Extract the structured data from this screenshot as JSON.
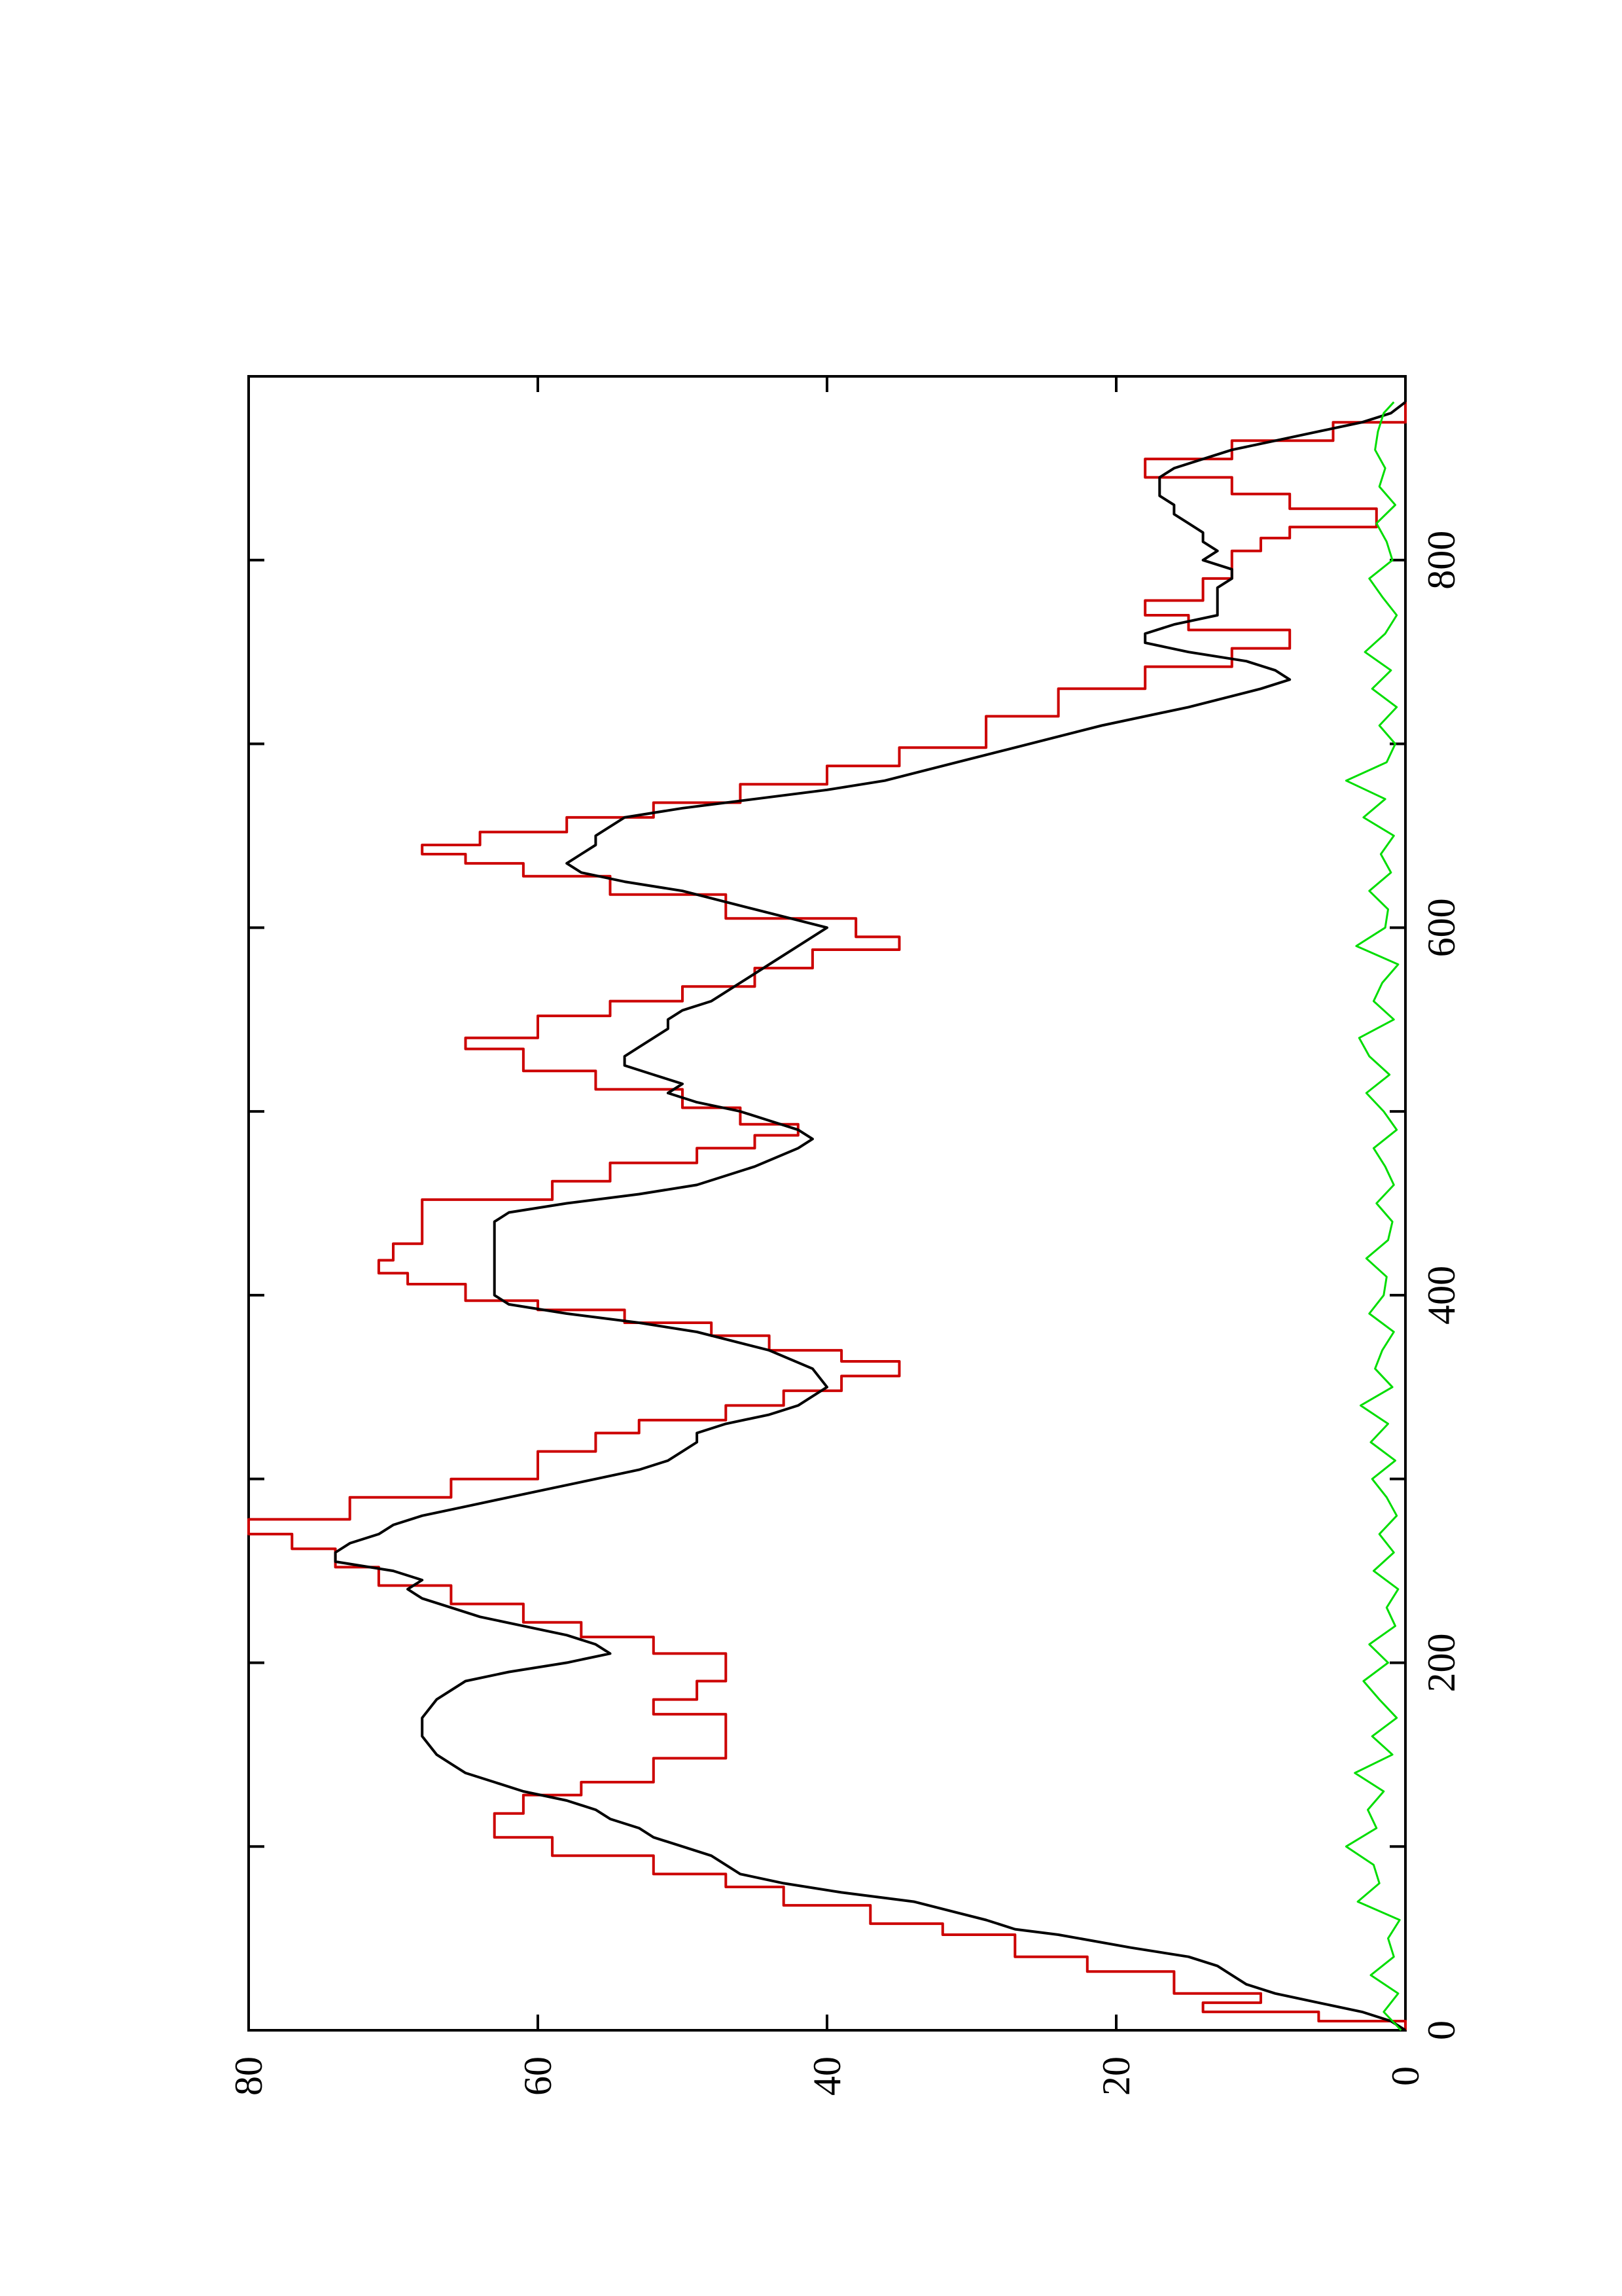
{
  "chart_data": {
    "type": "line",
    "orientation": "rotated-90-ccw",
    "xlim": [
      0,
      900
    ],
    "ylim": [
      0,
      80
    ],
    "x_ticks": [
      0,
      200,
      400,
      600,
      800
    ],
    "x_minor_ticks": [
      100,
      300,
      500,
      700
    ],
    "y_ticks": [
      0,
      20,
      40,
      60,
      80
    ],
    "grid": false,
    "legend": "none",
    "series": [
      {
        "color": "#cc0000",
        "style": "step",
        "x": [
          0,
          5,
          5,
          10,
          10,
          15,
          15,
          20,
          20,
          32,
          32,
          40,
          40,
          52,
          52,
          58,
          58,
          68,
          68,
          78,
          78,
          85,
          85,
          95,
          95,
          105,
          105,
          118,
          118,
          128,
          128,
          135,
          135,
          148,
          148,
          152,
          152,
          172,
          172,
          180,
          180,
          190,
          190,
          205,
          205,
          214,
          214,
          222,
          222,
          232,
          232,
          242,
          242,
          252,
          252,
          262,
          262,
          270,
          270,
          278,
          278,
          290,
          290,
          300,
          300,
          315,
          315,
          325,
          325,
          332,
          332,
          340,
          340,
          348,
          348,
          356,
          356,
          364,
          364,
          370,
          370,
          378,
          378,
          385,
          385,
          392,
          392,
          397,
          397,
          406,
          406,
          412,
          412,
          419,
          419,
          428,
          428,
          440,
          440,
          452,
          452,
          462,
          462,
          472,
          472,
          480,
          480,
          487,
          487,
          493,
          493,
          502,
          502,
          512,
          512,
          522,
          522,
          534,
          534,
          540,
          540,
          552,
          552,
          560,
          560,
          568,
          568,
          578,
          578,
          588,
          588,
          595,
          595,
          605,
          605,
          618,
          618,
          628,
          628,
          635,
          635,
          640,
          640,
          645,
          645,
          652,
          652,
          660,
          660,
          668,
          668,
          678,
          678,
          688,
          688,
          698,
          698,
          715,
          715,
          730,
          730,
          742,
          742,
          752,
          752,
          762,
          762,
          770,
          770,
          778,
          778,
          790,
          790,
          805,
          805,
          812,
          812,
          818,
          818,
          828,
          828,
          836,
          836,
          845,
          845,
          855,
          855,
          865,
          865,
          875,
          875,
          886
        ],
        "y": [
          0,
          0,
          6,
          6,
          14,
          14,
          10,
          10,
          16,
          16,
          22,
          22,
          27,
          27,
          32,
          32,
          37,
          37,
          43,
          43,
          47,
          47,
          52,
          52,
          59,
          59,
          63,
          63,
          61,
          61,
          57,
          57,
          52,
          52,
          47,
          47,
          47,
          47,
          52,
          52,
          49,
          49,
          47,
          47,
          52,
          52,
          57,
          57,
          61,
          61,
          66,
          66,
          71,
          71,
          74,
          74,
          77,
          77,
          80,
          80,
          73,
          73,
          66,
          66,
          60,
          60,
          56,
          56,
          53,
          53,
          47,
          47,
          43,
          43,
          39,
          39,
          35,
          35,
          39,
          39,
          44,
          44,
          48,
          48,
          54,
          54,
          60,
          60,
          65,
          65,
          69,
          69,
          71,
          71,
          70,
          70,
          68,
          68,
          68,
          68,
          59,
          59,
          55,
          55,
          49,
          49,
          45,
          45,
          42,
          42,
          46,
          46,
          50,
          50,
          56,
          56,
          61,
          61,
          65,
          65,
          60,
          60,
          55,
          55,
          50,
          50,
          45,
          45,
          41,
          41,
          35,
          35,
          38,
          38,
          47,
          47,
          55,
          55,
          61,
          61,
          65,
          65,
          68,
          68,
          64,
          64,
          58,
          58,
          52,
          52,
          46,
          46,
          40,
          40,
          35,
          35,
          29,
          29,
          24,
          24,
          18,
          18,
          12,
          12,
          8,
          8,
          15,
          15,
          18,
          18,
          14,
          14,
          12,
          12,
          10,
          10,
          8,
          8,
          2,
          2,
          8,
          8,
          12,
          12,
          18,
          18,
          12,
          12,
          5,
          5,
          0,
          0
        ]
      },
      {
        "color": "#000000",
        "style": "line",
        "x": [
          0,
          5,
          10,
          15,
          20,
          25,
          30,
          35,
          40,
          45,
          52,
          55,
          60,
          70,
          75,
          80,
          85,
          90,
          95,
          100,
          105,
          110,
          115,
          120,
          125,
          130,
          135,
          140,
          145,
          150,
          160,
          170,
          180,
          190,
          195,
          200,
          205,
          210,
          215,
          220,
          225,
          230,
          235,
          240,
          245,
          250,
          255,
          260,
          265,
          270,
          275,
          280,
          285,
          290,
          295,
          300,
          305,
          310,
          315,
          320,
          325,
          330,
          335,
          340,
          345,
          350,
          360,
          370,
          380,
          385,
          390,
          395,
          400,
          410,
          420,
          430,
          440,
          445,
          450,
          455,
          460,
          470,
          480,
          485,
          490,
          495,
          500,
          505,
          510,
          515,
          520,
          525,
          530,
          535,
          540,
          545,
          550,
          555,
          560,
          570,
          580,
          590,
          600,
          610,
          620,
          625,
          630,
          635,
          640,
          645,
          650,
          660,
          665,
          670,
          675,
          680,
          690,
          700,
          710,
          720,
          730,
          735,
          740,
          745,
          750,
          755,
          760,
          765,
          770,
          775,
          780,
          785,
          790,
          795,
          800,
          805,
          810,
          815,
          820,
          825,
          830,
          835,
          840,
          845,
          850,
          855,
          860,
          865,
          870,
          875,
          880,
          886
        ],
        "y": [
          0,
          1,
          3,
          6,
          9,
          11,
          12,
          13,
          15,
          19,
          24,
          27,
          29,
          34,
          39,
          43,
          46,
          47,
          48,
          50,
          52,
          53,
          55,
          56,
          58,
          61,
          63,
          65,
          66,
          67,
          68,
          68,
          67,
          65,
          62,
          58,
          55,
          56,
          58,
          61,
          64,
          66,
          68,
          69,
          68,
          70,
          74,
          74,
          73,
          71,
          70,
          68,
          65,
          62,
          59,
          56,
          53,
          51,
          50,
          49,
          49,
          47,
          44,
          42,
          41,
          40,
          41,
          44,
          49,
          53,
          58,
          62,
          63,
          63,
          63,
          63,
          63,
          62,
          58,
          53,
          49,
          45,
          42,
          41,
          42,
          44,
          46,
          49,
          51,
          50,
          52,
          54,
          54,
          53,
          52,
          51,
          51,
          50,
          48,
          46,
          44,
          42,
          40,
          45,
          50,
          54,
          57,
          58,
          57,
          56,
          56,
          54,
          50,
          45,
          40,
          36,
          31,
          26,
          21,
          15,
          10,
          8,
          9,
          11,
          15,
          18,
          18,
          16,
          13,
          13,
          13,
          13,
          12,
          12,
          14,
          13,
          14,
          14,
          15,
          16,
          16,
          17,
          17,
          17,
          16,
          14,
          12,
          9,
          6,
          3,
          1,
          0
        ]
      },
      {
        "color": "#00dd00",
        "style": "noise",
        "x": [
          0,
          10,
          20,
          30,
          40,
          50,
          60,
          70,
          80,
          90,
          100,
          110,
          120,
          130,
          140,
          150,
          160,
          170,
          180,
          190,
          200,
          210,
          220,
          230,
          240,
          250,
          260,
          270,
          280,
          290,
          300,
          310,
          320,
          330,
          340,
          350,
          360,
          370,
          380,
          390,
          400,
          410,
          420,
          430,
          440,
          450,
          460,
          470,
          480,
          490,
          500,
          510,
          520,
          530,
          540,
          550,
          560,
          570,
          580,
          590,
          600,
          610,
          620,
          630,
          640,
          650,
          660,
          670,
          680,
          690,
          700,
          710,
          720,
          730,
          740,
          750,
          760,
          770,
          780,
          790,
          800,
          810,
          820,
          830,
          840,
          850,
          860,
          870,
          880,
          886
        ],
        "y": [
          0.3,
          1.5,
          0.5,
          2.4,
          0.8,
          1.2,
          0.4,
          3.3,
          1.8,
          2.2,
          4.1,
          2.0,
          2.6,
          1.5,
          3.5,
          0.9,
          2.3,
          0.6,
          1.8,
          2.9,
          1.2,
          2.5,
          0.7,
          1.3,
          0.5,
          2.2,
          0.8,
          1.8,
          0.6,
          1.3,
          2.3,
          0.7,
          2.4,
          1.2,
          3.1,
          0.9,
          2.1,
          1.6,
          0.8,
          2.5,
          1.5,
          1.3,
          2.7,
          1.2,
          0.9,
          2.0,
          0.8,
          1.4,
          2.2,
          0.6,
          1.5,
          2.7,
          1.1,
          2.5,
          3.2,
          0.8,
          2.2,
          1.6,
          0.5,
          3.4,
          1.4,
          1.2,
          2.5,
          1.0,
          1.7,
          0.8,
          2.9,
          1.4,
          4.1,
          1.3,
          0.7,
          1.8,
          0.6,
          2.3,
          1.0,
          2.8,
          1.4,
          0.6,
          1.6,
          2.5,
          0.9,
          1.3,
          2.0,
          0.7,
          1.8,
          1.4,
          2.1,
          1.9,
          1.5,
          0.8
        ]
      }
    ]
  }
}
